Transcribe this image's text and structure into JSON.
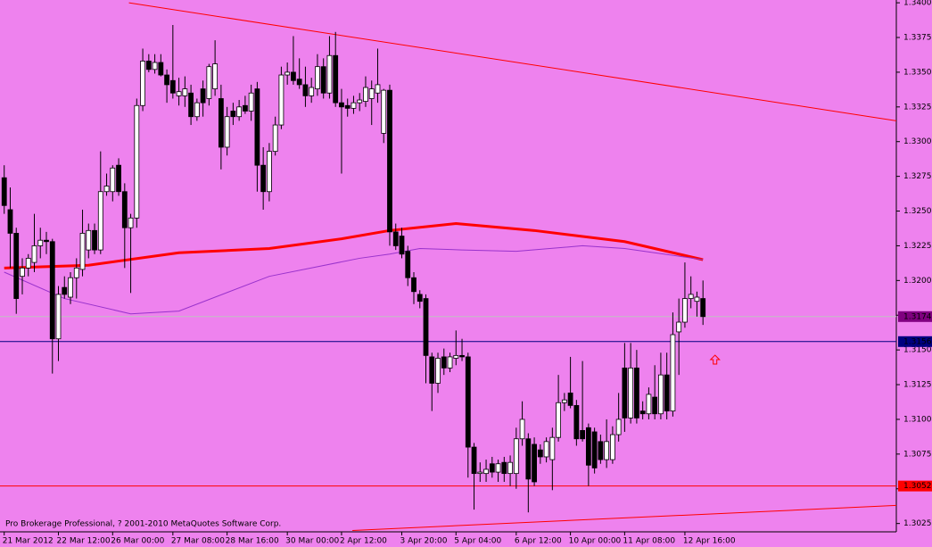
{
  "chart_data": {
    "type": "candlestick",
    "watermark": "Pro Brokerage Professional, ? 2001-2010 MetaQuotes Software Corp.",
    "background": "#ee82ee",
    "up_color": "#ffffff",
    "down_color": "#000000",
    "open": [
      1.3274,
      1.3251,
      1.3234,
      1.3203,
      1.3209,
      1.3213,
      1.3225,
      1.3229,
      1.3228,
      1.3158,
      1.3195,
      1.3188,
      1.3202,
      1.3208,
      1.3222,
      1.3236,
      1.3222,
      1.3264,
      1.3264,
      1.3283,
      1.3264,
      1.3238,
      1.3245,
      1.3326,
      1.3358,
      1.3352,
      1.3357,
      1.3348,
      1.3344,
      1.3333,
      1.3333,
      1.3335,
      1.3318,
      1.3338,
      1.3331,
      1.3338,
      1.3331,
      1.3296,
      1.3322,
      1.3318,
      1.3326,
      1.3322,
      1.3338,
      1.3283,
      1.3264,
      1.3293,
      1.3312,
      1.3348,
      1.335,
      1.3345,
      1.3341,
      1.3333,
      1.3338,
      1.3354,
      1.3335,
      1.3362,
      1.3328,
      1.3326,
      1.3324,
      1.3328,
      1.3329,
      1.3331,
      1.3335,
      1.3306,
      1.3337,
      1.3235,
      1.3232,
      1.3221,
      1.3202,
      1.319,
      1.3187,
      1.3145,
      1.3126,
      1.3145,
      1.3137,
      1.3144,
      1.3146,
      1.3145,
      1.308,
      1.3061,
      1.3061,
      1.3068,
      1.3062,
      1.3069,
      1.3061,
      1.3061,
      1.3086,
      1.3086,
      1.3082,
      1.3078,
      1.3073,
      1.3071,
      1.3087,
      1.3112,
      1.3119,
      1.311,
      1.3092,
      1.3094,
      1.3091,
      1.3084,
      1.3071,
      1.3071,
      1.3089,
      1.3137,
      1.3101,
      1.3137,
      1.3106,
      1.3104,
      1.3116,
      1.3104,
      1.3132,
      1.3106,
      1.3163,
      1.317,
      1.3187,
      1.3185,
      1.3187
    ],
    "high": [
      1.3283,
      1.3267,
      1.3238,
      1.3216,
      1.3219,
      1.3248,
      1.3238,
      1.3235,
      1.323,
      1.3196,
      1.3203,
      1.3206,
      1.3216,
      1.3251,
      1.3241,
      1.3241,
      1.3293,
      1.3277,
      1.3283,
      1.3288,
      1.327,
      1.3248,
      1.3331,
      1.3367,
      1.3363,
      1.3363,
      1.3363,
      1.3352,
      1.3384,
      1.3346,
      1.3347,
      1.3341,
      1.3331,
      1.3344,
      1.3356,
      1.3373,
      1.3341,
      1.3325,
      1.3328,
      1.333,
      1.3333,
      1.3341,
      1.3343,
      1.3296,
      1.3299,
      1.3318,
      1.3354,
      1.3357,
      1.3376,
      1.336,
      1.3354,
      1.3346,
      1.3363,
      1.336,
      1.3376,
      1.3379,
      1.3338,
      1.3331,
      1.3333,
      1.3335,
      1.3347,
      1.3344,
      1.3367,
      1.3338,
      1.3341,
      1.3241,
      1.3238,
      1.3225,
      1.3206,
      1.3193,
      1.319,
      1.3148,
      1.3148,
      1.3151,
      1.3148,
      1.3164,
      1.3158,
      1.3148,
      1.3083,
      1.3069,
      1.3071,
      1.3073,
      1.3071,
      1.3073,
      1.3074,
      1.3094,
      1.3113,
      1.309,
      1.3087,
      1.3082,
      1.3087,
      1.3094,
      1.3132,
      1.3119,
      1.3145,
      1.3114,
      1.3142,
      1.3097,
      1.3094,
      1.3089,
      1.31,
      1.3095,
      1.3119,
      1.3155,
      1.3155,
      1.315,
      1.3113,
      1.3123,
      1.3139,
      1.3148,
      1.3148,
      1.3177,
      1.3187,
      1.3213,
      1.3203,
      1.3192,
      1.32
    ],
    "low": [
      1.3248,
      1.3209,
      1.3176,
      1.319,
      1.3203,
      1.3206,
      1.3216,
      1.3219,
      1.3133,
      1.3142,
      1.3187,
      1.3183,
      1.3187,
      1.3203,
      1.3216,
      1.3219,
      1.3219,
      1.3261,
      1.3257,
      1.3261,
      1.3209,
      1.3191,
      1.3238,
      1.3322,
      1.335,
      1.3349,
      1.3347,
      1.3328,
      1.3331,
      1.3326,
      1.3325,
      1.3312,
      1.3315,
      1.3318,
      1.3326,
      1.3333,
      1.328,
      1.329,
      1.3312,
      1.3315,
      1.332,
      1.3315,
      1.3264,
      1.3251,
      1.3257,
      1.329,
      1.3309,
      1.3341,
      1.3341,
      1.3338,
      1.3325,
      1.3328,
      1.3333,
      1.3331,
      1.3331,
      1.3325,
      1.3277,
      1.3318,
      1.332,
      1.3322,
      1.3325,
      1.3312,
      1.3328,
      1.3299,
      1.3225,
      1.3222,
      1.3216,
      1.3196,
      1.3183,
      1.318,
      1.3126,
      1.3106,
      1.3119,
      1.3132,
      1.3134,
      1.3139,
      1.3142,
      1.3058,
      1.3035,
      1.3055,
      1.3055,
      1.3058,
      1.3055,
      1.3055,
      1.3052,
      1.305,
      1.3081,
      1.3033,
      1.3052,
      1.3068,
      1.3069,
      1.3049,
      1.3084,
      1.3106,
      1.3108,
      1.3081,
      1.3084,
      1.3052,
      1.3061,
      1.3068,
      1.3065,
      1.3068,
      1.3084,
      1.3091,
      1.3097,
      1.3097,
      1.31,
      1.31,
      1.31,
      1.31,
      1.31,
      1.3102,
      1.3132,
      1.3166,
      1.318,
      1.3174,
      1.3168
    ],
    "close": [
      1.3254,
      1.3234,
      1.3187,
      1.3209,
      1.3216,
      1.3225,
      1.3229,
      1.3228,
      1.3158,
      1.319,
      1.319,
      1.3202,
      1.3209,
      1.3234,
      1.3236,
      1.3222,
      1.3264,
      1.3268,
      1.3281,
      1.3264,
      1.3238,
      1.3245,
      1.3326,
      1.3358,
      1.3352,
      1.3357,
      1.3348,
      1.3341,
      1.3335,
      1.3336,
      1.3338,
      1.3318,
      1.3328,
      1.3328,
      1.3354,
      1.3356,
      1.3296,
      1.3318,
      1.3318,
      1.3325,
      1.3322,
      1.3335,
      1.3283,
      1.3264,
      1.3293,
      1.3312,
      1.3348,
      1.335,
      1.3344,
      1.3341,
      1.3333,
      1.3339,
      1.3354,
      1.3335,
      1.3362,
      1.3328,
      1.3325,
      1.3324,
      1.3328,
      1.333,
      1.3339,
      1.3338,
      1.3341,
      1.3337,
      1.3235,
      1.3225,
      1.3219,
      1.3202,
      1.3192,
      1.3185,
      1.3146,
      1.3126,
      1.3144,
      1.3137,
      1.3145,
      1.3146,
      1.3145,
      1.308,
      1.3061,
      1.3062,
      1.3064,
      1.3062,
      1.3068,
      1.3061,
      1.3069,
      1.3086,
      1.31,
      1.3057,
      1.3055,
      1.3073,
      1.3084,
      1.3087,
      1.3112,
      1.3114,
      1.311,
      1.3086,
      1.3086,
      1.3067,
      1.3065,
      1.3071,
      1.3084,
      1.3089,
      1.31,
      1.3101,
      1.3137,
      1.3101,
      1.3104,
      1.3118,
      1.3104,
      1.3132,
      1.3106,
      1.3161,
      1.317,
      1.3187,
      1.319,
      1.3188,
      1.3174
    ],
    "lines": [
      {
        "color": "#ff0000",
        "width": 3,
        "x": [
          0,
          14,
          29,
          44,
          56,
          64,
          75,
          88,
          103,
          116
        ],
        "values": [
          1.3209,
          1.3211,
          1.322,
          1.3223,
          1.323,
          1.3236,
          1.3241,
          1.3236,
          1.3228,
          1.3215
        ]
      },
      {
        "color": "#9932cc",
        "width": 1,
        "x": [
          0,
          10,
          21,
          29,
          44,
          59,
          64,
          69,
          76,
          85,
          96,
          103,
          116
        ],
        "values": [
          1.3206,
          1.3187,
          1.3176,
          1.3178,
          1.3203,
          1.3216,
          1.3219,
          1.3223,
          1.3222,
          1.3221,
          1.3225,
          1.3223,
          1.3215
        ]
      }
    ],
    "trendlines": [
      {
        "color": "#ff0000",
        "x": [
          20.7,
          148.1
        ],
        "values": [
          1.34,
          1.3315
        ]
      },
      {
        "color": "#ff0000",
        "x": [
          57.8,
          148.1
        ],
        "values": [
          1.302,
          1.3038
        ]
      }
    ],
    "hlines": [
      {
        "value": 1.3174,
        "color": "#c0c0c0",
        "label_color": "#800080"
      },
      {
        "value": 1.3156,
        "color": "#000080",
        "label_color": "#000080"
      },
      {
        "value": 1.3052,
        "color": "#ff0000",
        "label_color": "#ff0000"
      }
    ],
    "arrow": {
      "x": 118,
      "value": 1.3143,
      "color": "#ff0000"
    },
    "xlim": [
      -0.7,
      148.1
    ],
    "ylim": [
      1.3019,
      1.3402
    ],
    "yticks": [
      1.3025,
      {
        "value": 1.305,
        "label": "1.3050"
      },
      1.3075,
      {
        "value": 1.31,
        "label": "1.3100"
      },
      1.3125,
      {
        "value": 1.315,
        "label": "1.3150"
      },
      1.3175,
      {
        "value": 1.32,
        "label": "1.3200"
      },
      1.3225,
      {
        "value": 1.325,
        "label": "1.3250"
      },
      1.3275,
      {
        "value": 1.33,
        "label": "1.3300"
      },
      1.3325,
      {
        "value": 1.335,
        "label": "1.3350"
      },
      1.3375,
      {
        "value": 1.34,
        "label": "1.3400"
      }
    ],
    "xticks": [
      {
        "value": 0,
        "label": "21 Mar 2012"
      },
      {
        "value": 9,
        "label": "22 Mar 12:00"
      },
      {
        "value": 18,
        "label": "26 Mar 00:00"
      },
      {
        "value": 28,
        "label": "27 Mar 08:00"
      },
      {
        "value": 37,
        "label": "28 Mar 16:00"
      },
      {
        "value": 47,
        "label": "30 Mar 00:00"
      },
      {
        "value": 56,
        "label": "2 Apr 12:00"
      },
      {
        "value": 66,
        "label": "3 Apr 20:00"
      },
      {
        "value": 75,
        "label": "5 Apr 04:00"
      },
      {
        "value": 85,
        "label": "6 Apr 12:00"
      },
      {
        "value": 94,
        "label": "10 Apr 00:00"
      },
      {
        "value": 103,
        "label": "11 Apr 08:00"
      },
      {
        "value": 113,
        "label": "12 Apr 16:00"
      }
    ]
  }
}
